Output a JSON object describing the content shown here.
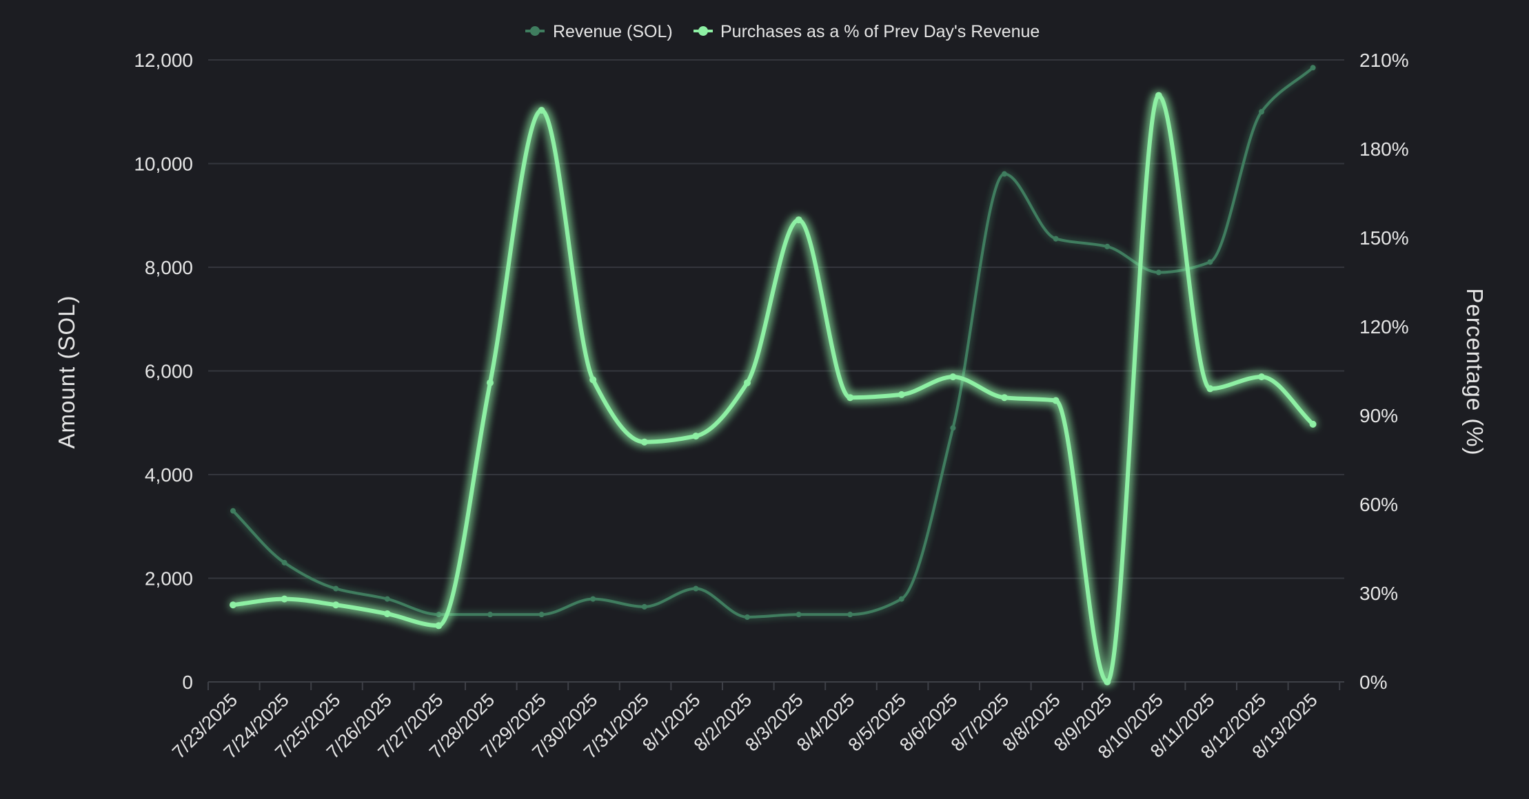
{
  "colors": {
    "background": "#1c1d22",
    "text": "#e6e6e6",
    "grid": "#34363d",
    "revenue": "#3f7d5f",
    "purchases": "#8ef0a4"
  },
  "chart_data": {
    "type": "line",
    "legend_position": "top-center",
    "grid": true,
    "categories": [
      "7/23/2025",
      "7/24/2025",
      "7/25/2025",
      "7/26/2025",
      "7/27/2025",
      "7/28/2025",
      "7/29/2025",
      "7/30/2025",
      "7/31/2025",
      "8/1/2025",
      "8/2/2025",
      "8/3/2025",
      "8/4/2025",
      "8/5/2025",
      "8/6/2025",
      "8/7/2025",
      "8/8/2025",
      "8/9/2025",
      "8/10/2025",
      "8/11/2025",
      "8/12/2025",
      "8/13/2025"
    ],
    "left_axis": {
      "label": "Amount (SOL)",
      "ticks": [
        "0",
        "2,000",
        "4,000",
        "6,000",
        "8,000",
        "10,000",
        "12,000"
      ],
      "ylim": [
        0,
        12000
      ]
    },
    "right_axis": {
      "label": "Percentage (%)",
      "ticks": [
        "0%",
        "30%",
        "60%",
        "90%",
        "120%",
        "150%",
        "180%",
        "210%"
      ],
      "ylim": [
        0,
        210
      ]
    },
    "series": [
      {
        "name": "Revenue (SOL)",
        "axis": "left",
        "values": [
          3300,
          2300,
          1800,
          1600,
          1300,
          1300,
          1300,
          1600,
          1450,
          1800,
          1250,
          1300,
          1300,
          1600,
          4900,
          9800,
          8550,
          8400,
          7900,
          8100,
          11000,
          11850
        ]
      },
      {
        "name": "Purchases as a % of Prev Day's Revenue",
        "axis": "right",
        "values": [
          26,
          28,
          26,
          23,
          19,
          101,
          193,
          102,
          81,
          83,
          101,
          156,
          96,
          97,
          103,
          96,
          95,
          0,
          198,
          99,
          103,
          87
        ]
      }
    ]
  }
}
